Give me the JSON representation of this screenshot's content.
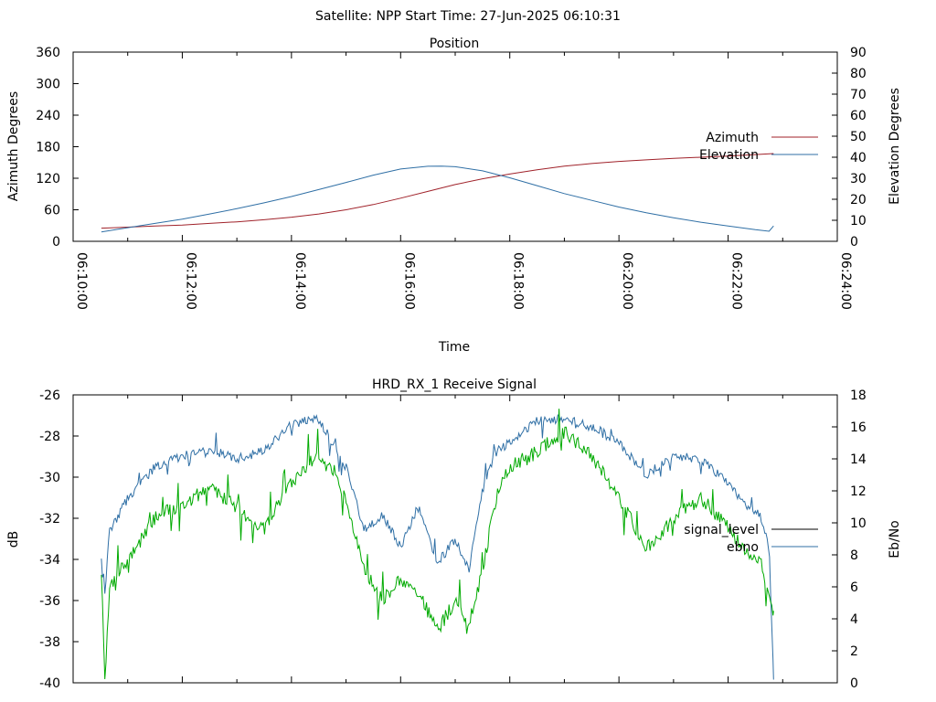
{
  "header": {
    "title": "Satellite: NPP    Start Time: 27-Jun-2025 06:10:31"
  },
  "chart_data": [
    {
      "type": "line",
      "title": "Position",
      "xlabel": "Time",
      "ylabel": "Azimuth Degrees",
      "y2label": "Elevation Degrees",
      "x_ticks": [
        "06:10:00",
        "06:12:00",
        "06:14:00",
        "06:16:00",
        "06:18:00",
        "06:20:00",
        "06:22:00",
        "06:24:00"
      ],
      "xlim": [
        "06:10:00",
        "06:24:00"
      ],
      "ylim": [
        0,
        360
      ],
      "y_ticks": [
        0,
        60,
        120,
        180,
        240,
        300,
        360
      ],
      "y2lim": [
        0,
        90
      ],
      "y2_ticks": [
        0,
        10,
        20,
        30,
        40,
        50,
        60,
        70,
        80,
        90
      ],
      "legend_position": "right",
      "series": [
        {
          "name": "Azimuth",
          "axis": "left",
          "color": "#a0222a",
          "x": [
            "06:10:31",
            "06:11:00",
            "06:11:30",
            "06:12:00",
            "06:12:30",
            "06:13:00",
            "06:13:30",
            "06:14:00",
            "06:14:30",
            "06:15:00",
            "06:15:30",
            "06:16:00",
            "06:16:30",
            "06:17:00",
            "06:17:30",
            "06:18:00",
            "06:18:30",
            "06:19:00",
            "06:19:30",
            "06:20:00",
            "06:20:30",
            "06:21:00",
            "06:21:30",
            "06:22:00",
            "06:22:30",
            "06:22:50"
          ],
          "values": [
            25,
            27,
            29,
            31,
            34,
            37,
            41,
            46,
            52,
            60,
            70,
            82,
            95,
            108,
            119,
            128,
            136,
            143,
            148,
            152,
            155,
            158,
            160,
            162,
            165,
            167
          ]
        },
        {
          "name": "Elevation",
          "axis": "right",
          "color": "#2f6fa5",
          "x": [
            "06:10:31",
            "06:11:00",
            "06:11:30",
            "06:12:00",
            "06:12:30",
            "06:13:00",
            "06:13:30",
            "06:14:00",
            "06:14:30",
            "06:15:00",
            "06:15:30",
            "06:16:00",
            "06:16:30",
            "06:16:45",
            "06:17:00",
            "06:17:30",
            "06:18:00",
            "06:18:30",
            "06:19:00",
            "06:19:30",
            "06:20:00",
            "06:20:30",
            "06:21:00",
            "06:21:30",
            "06:22:00",
            "06:22:30",
            "06:22:45",
            "06:22:50"
          ],
          "values": [
            4.5,
            6.5,
            8.5,
            10.5,
            13,
            15.5,
            18.3,
            21.3,
            24.6,
            28,
            31.5,
            34.4,
            35.7,
            35.8,
            35.5,
            33.5,
            30.2,
            26.5,
            22.7,
            19.5,
            16.3,
            13.6,
            11.2,
            9.1,
            7.3,
            5.5,
            4.8,
            7.3
          ]
        }
      ]
    },
    {
      "type": "line",
      "title": "HRD_RX_1 Receive Signal",
      "ylabel": "dB",
      "y2label": "Eb/No",
      "ylim": [
        -40,
        -26
      ],
      "y_ticks": [
        -40,
        -38,
        -36,
        -34,
        -32,
        -30,
        -28,
        -26
      ],
      "y2lim": [
        0,
        18
      ],
      "y2_ticks": [
        0,
        2,
        4,
        6,
        8,
        10,
        12,
        14,
        16,
        18
      ],
      "xlim": [
        "06:10:00",
        "06:24:00"
      ],
      "legend_position": "right",
      "series": [
        {
          "name": "signal_level",
          "axis": "left",
          "color": "#000000",
          "x": [],
          "values": []
        },
        {
          "name": "ebno",
          "axis": "right",
          "color": "#2f6fa5",
          "x": [
            "06:10:31",
            "06:10:35",
            "06:10:40",
            "06:10:50",
            "06:11:00",
            "06:11:15",
            "06:11:30",
            "06:12:00",
            "06:12:30",
            "06:13:00",
            "06:13:30",
            "06:14:00",
            "06:14:30",
            "06:15:00",
            "06:15:20",
            "06:15:40",
            "06:16:00",
            "06:16:20",
            "06:16:40",
            "06:17:00",
            "06:17:15",
            "06:17:30",
            "06:17:45",
            "06:18:00",
            "06:18:30",
            "06:19:00",
            "06:19:30",
            "06:20:00",
            "06:20:30",
            "06:21:00",
            "06:21:30",
            "06:22:00",
            "06:22:20",
            "06:22:35",
            "06:22:45",
            "06:22:50"
          ],
          "values": [
            7.5,
            5.5,
            9.5,
            10.5,
            11.5,
            12.5,
            13.5,
            14.2,
            14.6,
            14.0,
            14.5,
            16.2,
            16.5,
            13.5,
            9.5,
            10.5,
            8.5,
            11.0,
            7.5,
            9.0,
            7.0,
            12.0,
            14.5,
            15.0,
            16.4,
            16.5,
            16.0,
            15.0,
            13.0,
            14.2,
            14.0,
            12.5,
            11.0,
            10.5,
            8.5,
            0.2
          ]
        },
        {
          "name": "",
          "axis": "left",
          "color": "#00aa00",
          "x": [
            "06:10:31",
            "06:10:35",
            "06:10:40",
            "06:10:50",
            "06:11:00",
            "06:11:15",
            "06:11:30",
            "06:12:00",
            "06:12:30",
            "06:13:00",
            "06:13:30",
            "06:14:00",
            "06:14:30",
            "06:15:00",
            "06:15:20",
            "06:15:40",
            "06:16:00",
            "06:16:20",
            "06:16:40",
            "06:17:00",
            "06:17:15",
            "06:17:30",
            "06:17:45",
            "06:18:00",
            "06:18:30",
            "06:19:00",
            "06:19:30",
            "06:20:00",
            "06:20:30",
            "06:21:00",
            "06:21:30",
            "06:22:00",
            "06:22:20",
            "06:22:35",
            "06:22:45",
            "06:22:50"
          ],
          "values": [
            -34.5,
            -39.8,
            -35.5,
            -34.5,
            -34.0,
            -33.0,
            -32.0,
            -31.3,
            -30.5,
            -31.5,
            -32.5,
            -30.3,
            -28.8,
            -31.0,
            -34.5,
            -36.0,
            -35.0,
            -35.5,
            -37.5,
            -36.0,
            -37.5,
            -34.5,
            -31.0,
            -29.5,
            -28.8,
            -27.8,
            -29.0,
            -31.0,
            -33.5,
            -32.0,
            -31.0,
            -32.5,
            -33.5,
            -34.0,
            -35.5,
            -36.5
          ]
        }
      ]
    }
  ]
}
